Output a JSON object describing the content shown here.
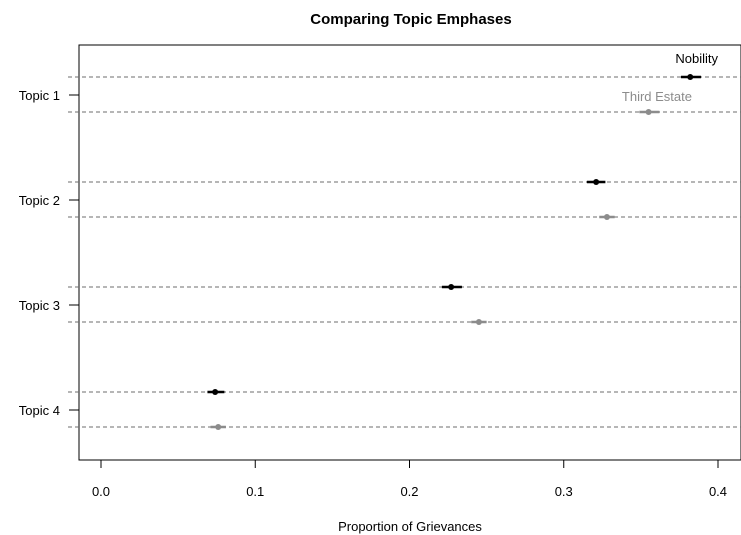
{
  "chart_data": {
    "type": "scatter",
    "title": "Comparing Topic Emphases",
    "xlabel": "Proportion of Grievances",
    "ylabel": "",
    "xlim": [
      0.0,
      0.4
    ],
    "xticks": [
      "0.0",
      "0.1",
      "0.2",
      "0.3",
      "0.4"
    ],
    "categories": [
      "Topic 1",
      "Topic 2",
      "Topic 3",
      "Topic 4"
    ],
    "grid": "dashed horizontal reference line per point",
    "series": [
      {
        "name": "Nobility",
        "color": "#000000",
        "values": [
          0.382,
          0.321,
          0.227,
          0.074
        ],
        "ci_low": [
          0.376,
          0.315,
          0.221,
          0.069
        ],
        "ci_high": [
          0.389,
          0.327,
          0.234,
          0.08
        ]
      },
      {
        "name": "Third Estate",
        "color": "#8c8c8c",
        "values": [
          0.355,
          0.328,
          0.245,
          0.076
        ],
        "ci_low": [
          0.349,
          0.323,
          0.24,
          0.071
        ],
        "ci_high": [
          0.362,
          0.333,
          0.25,
          0.081
        ]
      }
    ]
  }
}
